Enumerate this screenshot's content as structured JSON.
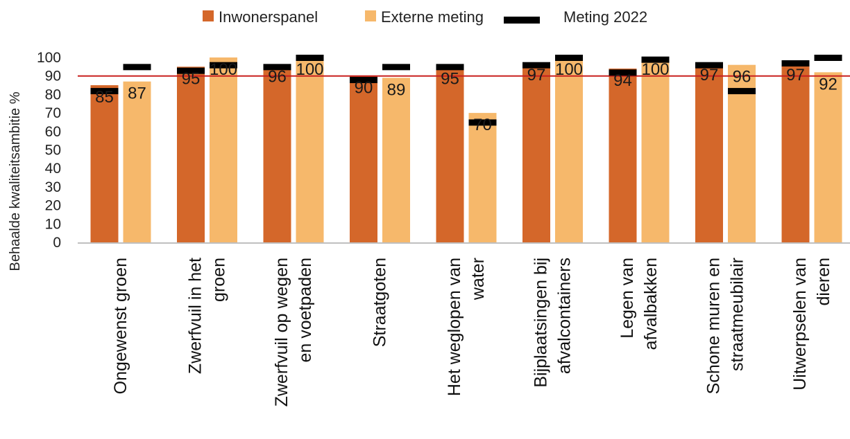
{
  "chart_data": {
    "type": "bar",
    "ylabel": "Behaalde kwaliteitsambitie %",
    "ylim": [
      0,
      100
    ],
    "yticks": [
      "0",
      "10",
      "20",
      "30",
      "40",
      "50",
      "60",
      "70",
      "80",
      "90",
      "100"
    ],
    "reference_line": 90,
    "categories": [
      [
        "Ongewenst groen"
      ],
      [
        "Zwerfvuil in het",
        "groen"
      ],
      [
        "Zwerfvuil op wegen",
        "en voetpaden"
      ],
      [
        "Straatgoten"
      ],
      [
        "Het weglopen van",
        "water"
      ],
      [
        "Bijplaatsingen bij",
        "afvalcontainers"
      ],
      [
        "Legen van",
        "afvalbakken"
      ],
      [
        "Schone muren en",
        "straatmeubilair"
      ],
      [
        "Uitwerpselen van",
        "dieren"
      ]
    ],
    "series": [
      {
        "name": "Inwonerspanel",
        "values": [
          85,
          95,
          96,
          90,
          95,
          97,
          94,
          97,
          97
        ],
        "labels": [
          "85",
          "95",
          "96",
          "90",
          "95",
          "97",
          "94",
          "97",
          "97"
        ]
      },
      {
        "name": "Externe meting",
        "values": [
          87,
          100,
          100,
          89,
          70,
          100,
          100,
          96,
          92
        ],
        "labels": [
          "87",
          "100",
          "100",
          "89",
          "70",
          "100",
          "100",
          "96",
          "92"
        ]
      }
    ],
    "meting_2022": {
      "name": "Meting 2022",
      "inwonerspanel": [
        82,
        93,
        95,
        88,
        95,
        96,
        92,
        96,
        97
      ],
      "externe_meting": [
        95,
        96,
        100,
        95,
        65,
        100,
        99,
        82,
        100
      ]
    },
    "legend_position": "top",
    "grid": false
  },
  "colors": {
    "inwonerspanel": "#D4672A",
    "externe_meting": "#F6B86B",
    "meting_2022": "#000000",
    "reference": "#C8201E",
    "axis": "#BFBFBF"
  }
}
